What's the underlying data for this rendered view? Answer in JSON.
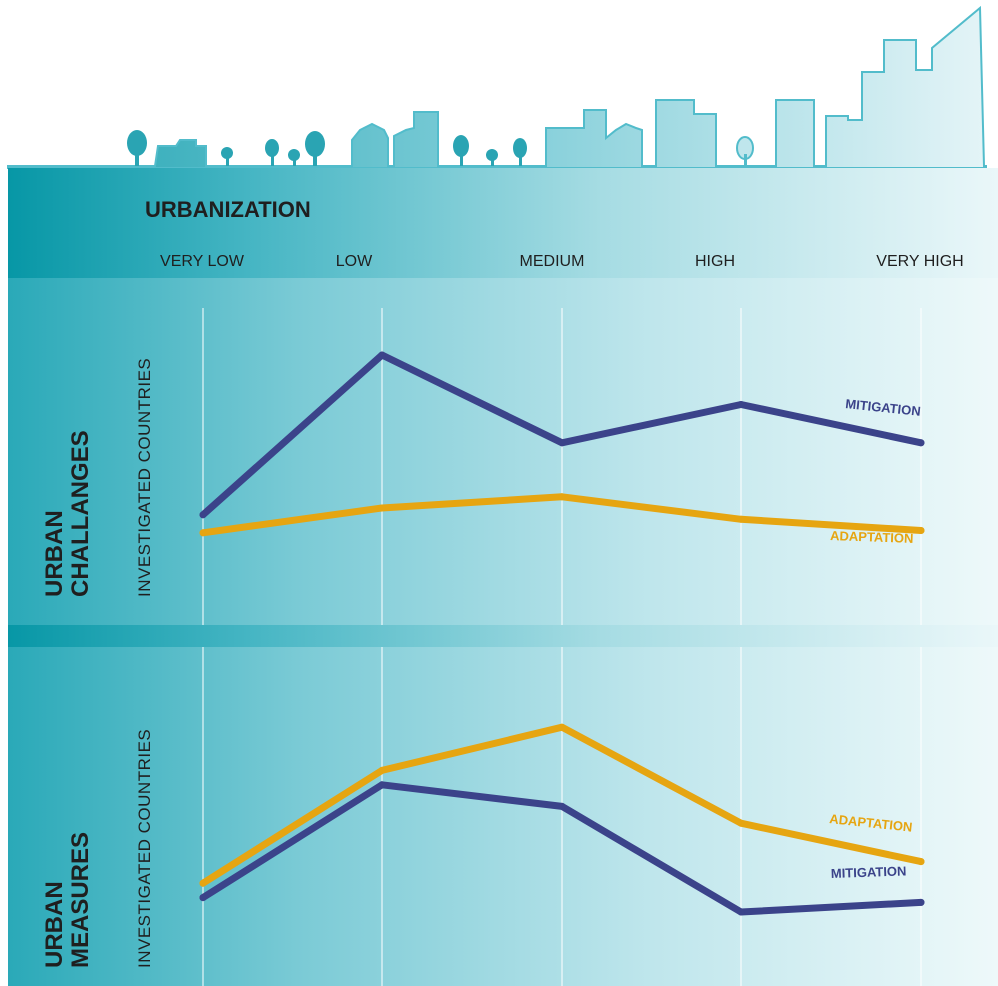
{
  "colors": {
    "band_dark": "#0797a6",
    "band_light": "#e8f6f8",
    "skyline": "#52bccb",
    "mitigation": "#3b438a",
    "adaptation": "#e6a511",
    "text": "#1f1f1f"
  },
  "header": {
    "title": "URBANIZATION",
    "levels": [
      "VERY LOW",
      "LOW",
      "MEDIUM",
      "HIGH",
      "VERY HIGH"
    ]
  },
  "chart_data": [
    {
      "type": "line",
      "title": "",
      "section_label": [
        "URBAN",
        "CHALLANGES"
      ],
      "ylabel": "INVESTIGATED COUNTRIES",
      "xlabel": "URBANIZATION",
      "categories": [
        "VERY LOW",
        "LOW",
        "MEDIUM",
        "HIGH",
        "VERY HIGH"
      ],
      "ylim": [
        0,
        100
      ],
      "grid": true,
      "series": [
        {
          "name": "MITIGATION",
          "color": "#3b438a",
          "values": [
            29,
            100,
            61,
            78,
            61
          ]
        },
        {
          "name": "ADAPTATION",
          "color": "#e6a511",
          "values": [
            21,
            32,
            37,
            27,
            22
          ]
        }
      ]
    },
    {
      "type": "line",
      "title": "",
      "section_label": [
        "URBAN",
        "MEASURES"
      ],
      "ylabel": "INVESTIGATED COUNTRIES",
      "xlabel": "URBANIZATION",
      "categories": [
        "VERY LOW",
        "LOW",
        "MEDIUM",
        "HIGH",
        "VERY HIGH"
      ],
      "ylim": [
        0,
        100
      ],
      "grid": true,
      "series": [
        {
          "name": "ADAPTATION",
          "color": "#e6a511",
          "values": [
            32,
            79,
            97,
            57,
            41
          ]
        },
        {
          "name": "MITIGATION",
          "color": "#3b438a",
          "values": [
            26,
            73,
            64,
            20,
            24
          ]
        }
      ]
    }
  ]
}
